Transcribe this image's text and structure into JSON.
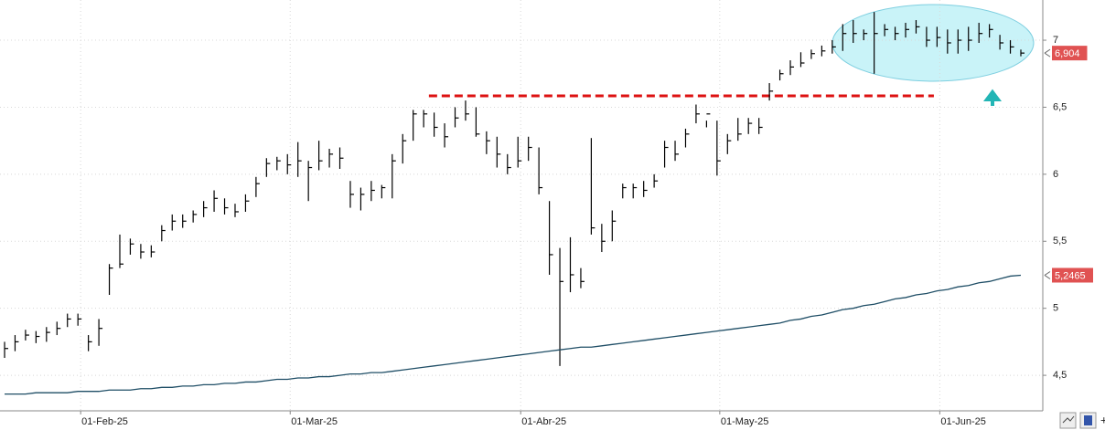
{
  "chart_data": {
    "type": "ohlc",
    "categories": [
      null,
      null,
      null,
      null,
      null,
      null,
      null,
      "01-Feb-25",
      null,
      null,
      null,
      null,
      null,
      null,
      null,
      null,
      null,
      null,
      null,
      null,
      null,
      null,
      null,
      null,
      null,
      null,
      null,
      "01-Mar-25",
      null,
      null,
      null,
      null,
      null,
      null,
      null,
      null,
      null,
      null,
      null,
      null,
      null,
      null,
      null,
      null,
      null,
      null,
      null,
      null,
      null,
      "01-Abr-25",
      null,
      null,
      null,
      null,
      null,
      null,
      null,
      null,
      null,
      null,
      null,
      null,
      null,
      null,
      null,
      null,
      null,
      null,
      "01-May-25",
      null,
      null,
      null,
      null,
      null,
      null,
      null,
      null,
      null,
      null,
      null,
      null,
      null,
      null,
      null,
      null,
      null,
      null,
      null,
      null,
      "01-Jun-25",
      null,
      null,
      null,
      null,
      null,
      null,
      null,
      null
    ],
    "series": [
      {
        "color": "#000000",
        "high": [
          4.75,
          4.8,
          4.84,
          4.83,
          4.86,
          4.9,
          4.96,
          4.96,
          4.8,
          4.92,
          5.33,
          5.55,
          5.52,
          5.48,
          5.47,
          5.62,
          5.7,
          5.7,
          5.73,
          5.8,
          5.88,
          5.82,
          5.78,
          5.85,
          5.98,
          6.12,
          6.13,
          6.15,
          6.24,
          6.1,
          6.25,
          6.19,
          6.2,
          5.95,
          5.9,
          5.95,
          5.92,
          6.15,
          6.3,
          6.48,
          6.48,
          6.46,
          6.38,
          6.5,
          6.55,
          6.5,
          6.32,
          6.28,
          6.15,
          6.28,
          6.28,
          6.2,
          5.8,
          5.45,
          5.53,
          5.3,
          6.27,
          5.63,
          5.73,
          5.93,
          5.93,
          5.95,
          6.0,
          6.25,
          6.25,
          6.34,
          6.52,
          6.4,
          6.4,
          6.3,
          6.42,
          6.42,
          6.42,
          6.68,
          6.78,
          6.85,
          6.91,
          6.93,
          6.96,
          7.0,
          7.12,
          7.15,
          7.08,
          7.21,
          7.12,
          7.1,
          7.13,
          7.15,
          7.1,
          7.1,
          7.08,
          7.08,
          7.1,
          7.13,
          7.12,
          7.04,
          7.0,
          6.93
        ],
        "low": [
          4.63,
          4.68,
          4.76,
          4.74,
          4.75,
          4.8,
          4.86,
          4.87,
          4.68,
          4.72,
          5.1,
          5.3,
          5.4,
          5.37,
          5.38,
          5.5,
          5.58,
          5.6,
          5.64,
          5.68,
          5.72,
          5.7,
          5.68,
          5.72,
          5.83,
          5.98,
          6.03,
          6.0,
          5.98,
          5.8,
          6.03,
          6.05,
          6.04,
          5.75,
          5.73,
          5.8,
          5.82,
          5.82,
          6.08,
          6.25,
          6.35,
          6.28,
          6.2,
          6.35,
          6.4,
          6.28,
          6.15,
          6.05,
          6.0,
          6.05,
          6.1,
          5.85,
          5.25,
          4.57,
          5.12,
          5.15,
          5.55,
          5.42,
          5.5,
          5.82,
          5.82,
          5.83,
          5.9,
          6.05,
          6.1,
          6.2,
          6.38,
          6.35,
          5.99,
          6.15,
          6.25,
          6.3,
          6.3,
          6.55,
          6.7,
          6.74,
          6.8,
          6.86,
          6.88,
          6.9,
          6.92,
          6.98,
          7.0,
          6.75,
          7.03,
          7.0,
          7.02,
          7.05,
          6.95,
          6.95,
          6.9,
          6.9,
          6.92,
          6.98,
          7.02,
          6.93,
          6.9,
          6.88
        ],
        "close": [
          4.7,
          4.75,
          4.8,
          4.79,
          4.82,
          4.85,
          4.92,
          4.92,
          4.75,
          4.85,
          5.3,
          5.33,
          5.48,
          5.42,
          5.42,
          5.58,
          5.65,
          5.65,
          5.7,
          5.75,
          5.82,
          5.75,
          5.72,
          5.8,
          5.93,
          6.08,
          6.1,
          6.07,
          6.1,
          6.05,
          6.1,
          6.15,
          6.12,
          5.85,
          5.85,
          5.88,
          5.9,
          6.1,
          6.25,
          6.45,
          6.45,
          6.35,
          6.28,
          6.42,
          6.45,
          6.3,
          6.25,
          6.15,
          6.05,
          6.1,
          6.2,
          5.9,
          5.4,
          5.2,
          5.25,
          5.2,
          5.6,
          5.5,
          5.65,
          5.9,
          5.9,
          5.88,
          5.95,
          6.2,
          6.15,
          6.3,
          6.45,
          6.45,
          6.1,
          6.25,
          6.3,
          6.38,
          6.35,
          6.62,
          6.75,
          6.8,
          6.83,
          6.9,
          6.92,
          6.95,
          7.05,
          7.05,
          7.05,
          7.05,
          7.08,
          7.05,
          7.08,
          7.1,
          7.0,
          7.02,
          6.98,
          7.0,
          7.0,
          7.05,
          7.08,
          6.98,
          6.95,
          6.904
        ],
        "last_label": "6,904",
        "label_color": "#e05252"
      },
      {
        "type": "line",
        "color": "#1f4e66",
        "values": [
          4.36,
          4.36,
          4.36,
          4.37,
          4.37,
          4.37,
          4.37,
          4.38,
          4.38,
          4.38,
          4.39,
          4.39,
          4.39,
          4.4,
          4.4,
          4.41,
          4.41,
          4.42,
          4.42,
          4.43,
          4.43,
          4.44,
          4.44,
          4.45,
          4.45,
          4.46,
          4.47,
          4.47,
          4.48,
          4.48,
          4.49,
          4.49,
          4.5,
          4.51,
          4.51,
          4.52,
          4.52,
          4.53,
          4.54,
          4.55,
          4.56,
          4.57,
          4.58,
          4.59,
          4.6,
          4.61,
          4.62,
          4.63,
          4.64,
          4.65,
          4.66,
          4.67,
          4.68,
          4.69,
          4.7,
          4.71,
          4.71,
          4.72,
          4.73,
          4.74,
          4.75,
          4.76,
          4.77,
          4.78,
          4.79,
          4.8,
          4.81,
          4.82,
          4.83,
          4.84,
          4.85,
          4.86,
          4.87,
          4.88,
          4.89,
          4.91,
          4.92,
          4.94,
          4.95,
          4.97,
          4.99,
          5.0,
          5.02,
          5.03,
          5.05,
          5.07,
          5.08,
          5.1,
          5.11,
          5.13,
          5.14,
          5.16,
          5.17,
          5.19,
          5.2,
          5.22,
          5.24,
          5.2465
        ],
        "last_label": "5,2465",
        "label_color": "#e05252"
      }
    ],
    "support": {
      "value": 6.585,
      "color": "#dd1111"
    },
    "ylim": [
      4.235,
      7.3
    ],
    "yticks": [
      {
        "value": 4.5,
        "label": "4,5"
      },
      5,
      {
        "value": 5.5,
        "label": "5,5"
      },
      6,
      {
        "value": 6.5,
        "label": "6,5"
      },
      7
    ],
    "grid": true
  }
}
